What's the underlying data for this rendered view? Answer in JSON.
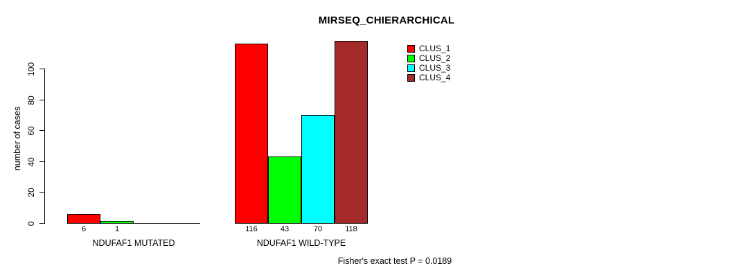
{
  "chart_data": {
    "type": "bar",
    "title": "MIRSEQ_CHIERARCHICAL",
    "ylabel": "number of cases",
    "xlabel": "",
    "ylim": [
      0,
      120
    ],
    "yticks": [
      0,
      20,
      40,
      60,
      80,
      100
    ],
    "grid": false,
    "legend_position": "top-right",
    "categories": [
      "NDUFAF1 MUTATED",
      "NDUFAF1 WILD-TYPE"
    ],
    "series": [
      {
        "name": "CLUS_1",
        "color": "#FF0000",
        "values": [
          6,
          116
        ]
      },
      {
        "name": "CLUS_2",
        "color": "#00FF00",
        "values": [
          1,
          43
        ]
      },
      {
        "name": "CLUS_3",
        "color": "#00FFFF",
        "values": [
          0,
          70
        ]
      },
      {
        "name": "CLUS_4",
        "color": "#A52A2A",
        "values": [
          0,
          118
        ]
      }
    ],
    "value_labels": [
      [
        "6",
        "1",
        "",
        ""
      ],
      [
        "116",
        "43",
        "70",
        "118"
      ]
    ],
    "annotation": "Fisher's exact test P = 0.0189",
    "axis_color": "#000000",
    "background": "#FFFFFF"
  }
}
